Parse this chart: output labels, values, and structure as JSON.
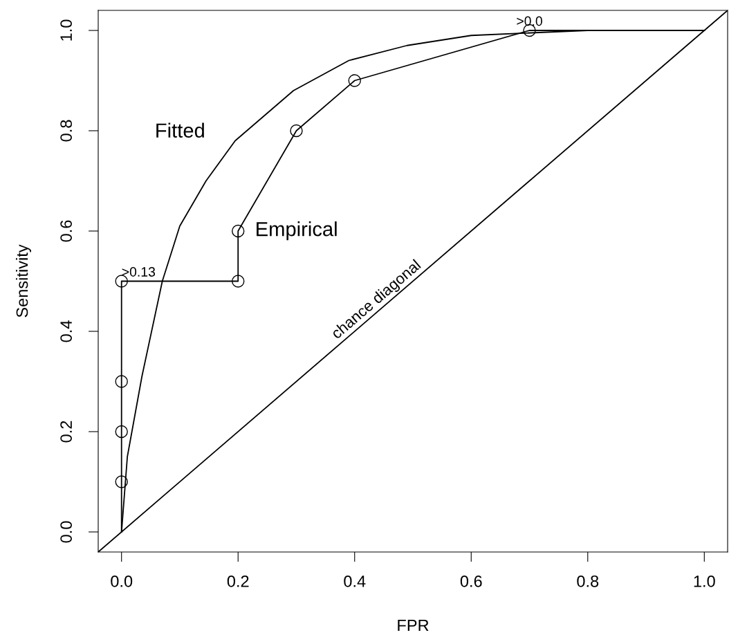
{
  "chart_data": {
    "type": "line",
    "xlabel": "FPR",
    "ylabel": "Sensitivity",
    "series": [
      {
        "color": "#000000",
        "marker": "none",
        "x": [
          0,
          0.01,
          0.035,
          0.07,
          0.1,
          0.145,
          0.195,
          0.295,
          0.39,
          0.49,
          0.6,
          0.8,
          1.0
        ],
        "values": [
          0,
          0.15,
          0.31,
          0.5,
          0.61,
          0.7,
          0.78,
          0.88,
          0.94,
          0.97,
          0.99,
          1.0,
          1.0
        ]
      },
      {
        "color": "#000000",
        "marker": "none",
        "x": [
          0,
          0,
          0,
          0,
          0,
          0.2,
          0.2,
          0.3,
          0.4,
          0.7,
          1.0
        ],
        "values": [
          0,
          0.1,
          0.2,
          0.3,
          0.5,
          0.5,
          0.6,
          0.8,
          0.9,
          1.0,
          1.0
        ]
      },
      {
        "type": "scatter",
        "color": "#000000",
        "marker": "circle",
        "x": [
          0,
          0,
          0,
          0,
          0.2,
          0.2,
          0.3,
          0.4,
          0.7
        ],
        "values": [
          0.1,
          0.2,
          0.3,
          0.5,
          0.5,
          0.6,
          0.8,
          0.9,
          1.0
        ]
      },
      {
        "color": "#000000",
        "marker": "none",
        "x": [
          -0.04,
          1.04
        ],
        "values": [
          -0.04,
          1.04
        ]
      }
    ],
    "annotations": [
      {
        "text": ">0.13",
        "x": 0,
        "y": 0.5
      },
      {
        "text": ">0.0",
        "x": 0.7,
        "y": 1.0
      },
      "Fitted",
      "Empirical",
      "chance diagonal"
    ],
    "xlim": [
      -0.04,
      1.04
    ],
    "ylim": [
      -0.04,
      1.04
    ],
    "xticks": [
      {
        "value": 0,
        "label": "0.0"
      },
      0.2,
      0.4,
      0.6,
      0.8,
      {
        "value": 1,
        "label": "1.0"
      }
    ],
    "yticks": [
      {
        "value": 0,
        "label": "0.0"
      },
      0.2,
      0.4,
      0.6,
      0.8,
      {
        "value": 1,
        "label": "1.0"
      }
    ],
    "grid": false,
    "legend": false
  }
}
